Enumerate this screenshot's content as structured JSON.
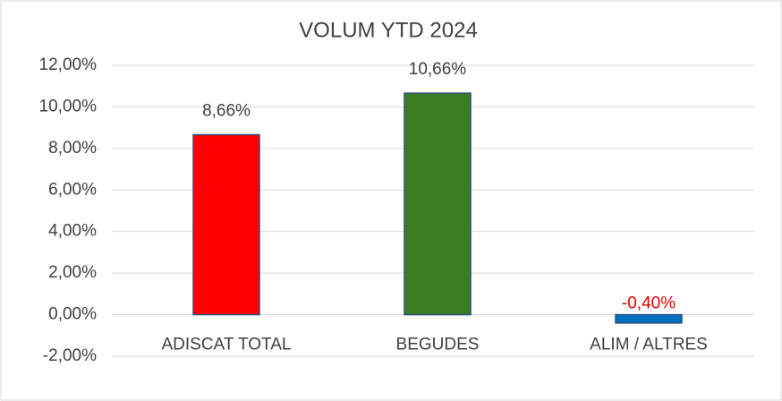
{
  "chart_data": {
    "type": "bar",
    "title": "VOLUM YTD 2024",
    "categories": [
      "ADISCAT TOTAL",
      "BEGUDES",
      "ALIM / ALTRES"
    ],
    "values": [
      8.66,
      10.66,
      -0.4
    ],
    "value_labels": [
      "8,66%",
      "10,66%",
      "-0,40%"
    ],
    "colors": [
      "#ff0000",
      "#3a7d22",
      "#0070c0"
    ],
    "ylim": [
      -2,
      12
    ],
    "yticks": [
      {
        "value": -2,
        "label": "-2,00%"
      },
      {
        "value": 0,
        "label": "0,00%"
      },
      {
        "value": 2,
        "label": "2,00%"
      },
      {
        "value": 4,
        "label": "4,00%"
      },
      {
        "value": 6,
        "label": "6,00%"
      },
      {
        "value": 8,
        "label": "8,00%"
      },
      {
        "value": 10,
        "label": "10,00%"
      },
      {
        "value": 12,
        "label": "12,00%"
      }
    ],
    "grid": true
  }
}
